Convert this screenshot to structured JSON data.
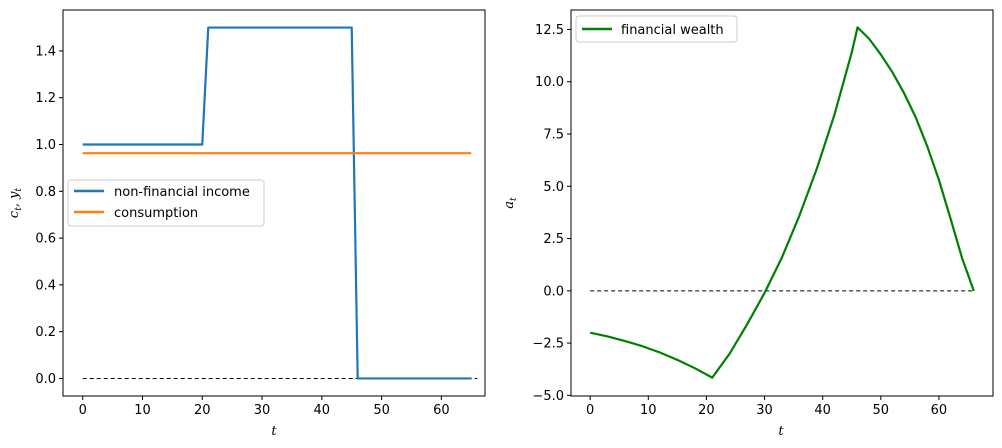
{
  "chart_data": [
    {
      "type": "line",
      "xlabel": "t",
      "ylabel": "c_t, y_t",
      "xlim": [
        -3.3,
        67.3
      ],
      "ylim": [
        -0.075,
        1.575
      ],
      "xticks": [
        0,
        10,
        20,
        30,
        40,
        50,
        60
      ],
      "xtick_labels": [
        "0",
        "10",
        "20",
        "30",
        "40",
        "50",
        "60"
      ],
      "yticks": [
        0.0,
        0.2,
        0.4,
        0.6,
        0.8,
        1.0,
        1.2,
        1.4
      ],
      "ytick_labels": [
        "0.0",
        "0.2",
        "0.4",
        "0.6",
        "0.8",
        "1.0",
        "1.2",
        "1.4"
      ],
      "legend_position": "center-left",
      "series": [
        {
          "name": "non-financial income",
          "color": "#1f77b4",
          "x": [
            0,
            20,
            21,
            45,
            46,
            65
          ],
          "y": [
            1.0,
            1.0,
            1.5,
            1.5,
            0.0,
            0.0
          ]
        },
        {
          "name": "consumption",
          "color": "#ff7f0e",
          "x": [
            0,
            65
          ],
          "y": [
            0.963,
            0.963
          ]
        }
      ],
      "reference_line": {
        "y": 0.0,
        "x": [
          0,
          66
        ],
        "style": "dashed",
        "color": "#000000"
      }
    },
    {
      "type": "line",
      "xlabel": "t",
      "ylabel": "a_t",
      "xlim": [
        -3.3,
        69.3
      ],
      "ylim": [
        -5.03,
        13.43
      ],
      "xticks": [
        0,
        10,
        20,
        30,
        40,
        50,
        60
      ],
      "xtick_labels": [
        "0",
        "10",
        "20",
        "30",
        "40",
        "50",
        "60"
      ],
      "yticks": [
        -5.0,
        -2.5,
        0.0,
        2.5,
        5.0,
        7.5,
        10.0,
        12.5
      ],
      "ytick_labels": [
        "−5.0",
        "−2.5",
        "0.0",
        "2.5",
        "5.0",
        "7.5",
        "10.0",
        "12.5"
      ],
      "legend_position": "top-left",
      "series": [
        {
          "name": "financial wealth",
          "color": "#008000",
          "x": [
            0,
            3,
            6,
            9,
            12,
            15,
            18,
            21,
            24,
            27,
            30,
            33,
            36,
            39,
            42,
            45,
            46,
            48,
            50,
            52,
            54,
            56,
            58,
            60,
            62,
            64,
            66
          ],
          "y": [
            -2.0,
            -2.18,
            -2.4,
            -2.65,
            -2.95,
            -3.3,
            -3.7,
            -4.15,
            -3.0,
            -1.6,
            -0.1,
            1.6,
            3.6,
            5.85,
            8.4,
            11.4,
            12.6,
            12.05,
            11.3,
            10.45,
            9.45,
            8.3,
            6.9,
            5.3,
            3.45,
            1.55,
            0.0
          ]
        }
      ],
      "reference_line": {
        "y": 0.0,
        "x": [
          0,
          66
        ],
        "style": "dashed",
        "color": "#000000"
      }
    }
  ]
}
